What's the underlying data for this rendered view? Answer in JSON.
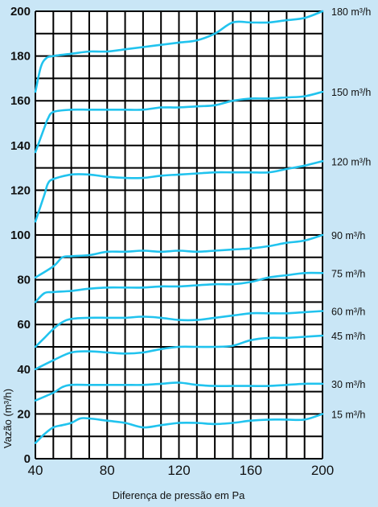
{
  "chart_data": {
    "type": "line",
    "title": "",
    "xlabel": "Diferença de pressão em Pa",
    "ylabel": "Vazão (m³/h)",
    "xlim": [
      40,
      200
    ],
    "ylim": [
      0,
      200
    ],
    "x_ticks": [
      "40",
      "80",
      "120",
      "160",
      "200"
    ],
    "y_ticks": [
      "0",
      "20",
      "40",
      "60",
      "80",
      "100",
      "120",
      "140",
      "160",
      "180",
      "200"
    ],
    "grid": true,
    "colors": {
      "background": "#c9e6f6",
      "plot_area": "#ffffff",
      "line": "#21c3ee",
      "grid": "#000000"
    },
    "series": [
      {
        "name": "15 m³/h",
        "x": [
          40,
          45,
          50,
          55,
          60,
          65,
          70,
          80,
          90,
          100,
          110,
          120,
          130,
          140,
          150,
          160,
          170,
          180,
          190,
          200
        ],
        "y": [
          7,
          11,
          14,
          15,
          16,
          18,
          18,
          17,
          16,
          14,
          15,
          16,
          16,
          15.5,
          16,
          17,
          17.5,
          17.5,
          17.5,
          20
        ]
      },
      {
        "name": "30 m³/h",
        "x": [
          40,
          50,
          55,
          60,
          70,
          80,
          90,
          100,
          110,
          120,
          130,
          140,
          150,
          160,
          170,
          180,
          190,
          200
        ],
        "y": [
          26,
          29.5,
          32,
          33,
          33,
          33,
          33,
          33,
          33.5,
          34,
          33,
          32.5,
          32.5,
          32.5,
          32.5,
          33,
          33.5,
          33.5
        ]
      },
      {
        "name": "45 m³/h",
        "x": [
          40,
          50,
          60,
          70,
          80,
          90,
          100,
          110,
          120,
          130,
          140,
          150,
          160,
          170,
          180,
          190,
          200
        ],
        "y": [
          40,
          44,
          47.5,
          48,
          47.5,
          47,
          47.5,
          49,
          50,
          50,
          50,
          50.5,
          53,
          54,
          54,
          54.5,
          55
        ]
      },
      {
        "name": "60 m³/h",
        "x": [
          40,
          45,
          50,
          55,
          60,
          70,
          80,
          90,
          100,
          110,
          120,
          130,
          140,
          150,
          160,
          170,
          180,
          190,
          200
        ],
        "y": [
          50,
          54,
          58,
          61,
          62.5,
          63,
          63,
          63,
          63.5,
          63,
          62,
          62,
          63,
          64,
          65,
          65,
          65,
          65.5,
          66
        ]
      },
      {
        "name": "75 m³/h",
        "x": [
          40,
          45,
          50,
          60,
          70,
          80,
          90,
          100,
          110,
          120,
          130,
          140,
          150,
          160,
          170,
          180,
          190,
          200
        ],
        "y": [
          70,
          74,
          74.5,
          75,
          76,
          76.5,
          76.5,
          76.5,
          77,
          77,
          77.5,
          78,
          78,
          79,
          81,
          82,
          83,
          83
        ]
      },
      {
        "name": "90 m³/h",
        "x": [
          40,
          50,
          55,
          60,
          70,
          80,
          90,
          100,
          110,
          120,
          130,
          140,
          150,
          160,
          170,
          180,
          190,
          200
        ],
        "y": [
          81,
          86,
          90,
          90.5,
          91,
          92.5,
          92.5,
          93,
          92.5,
          93,
          92.5,
          93,
          93.5,
          94,
          95,
          96.5,
          97.5,
          100
        ]
      },
      {
        "name": "120 m³/h",
        "x": [
          40,
          45,
          47,
          50,
          60,
          70,
          80,
          90,
          100,
          110,
          120,
          130,
          140,
          150,
          160,
          170,
          180,
          190,
          200
        ],
        "y": [
          106,
          118,
          123,
          125,
          127,
          127,
          126,
          125.5,
          125.5,
          126.5,
          127,
          127.5,
          128,
          128,
          128,
          128,
          129.5,
          131,
          133
        ]
      },
      {
        "name": "150 m³/h",
        "x": [
          40,
          45,
          47,
          50,
          60,
          70,
          80,
          90,
          100,
          110,
          120,
          130,
          140,
          150,
          160,
          170,
          180,
          190,
          200
        ],
        "y": [
          137,
          148,
          152,
          155,
          156,
          156,
          156,
          156,
          156,
          157,
          157,
          157.5,
          158,
          160,
          161,
          161,
          161.5,
          162,
          164
        ]
      },
      {
        "name": "180 m³/h",
        "x": [
          40,
          43,
          46,
          50,
          60,
          70,
          80,
          90,
          100,
          110,
          120,
          130,
          140,
          150,
          160,
          170,
          180,
          190,
          200
        ],
        "y": [
          164,
          175,
          179,
          180,
          181,
          182,
          182,
          183,
          184,
          185,
          186,
          187,
          190,
          195,
          195,
          195,
          196,
          197,
          200
        ]
      }
    ]
  }
}
